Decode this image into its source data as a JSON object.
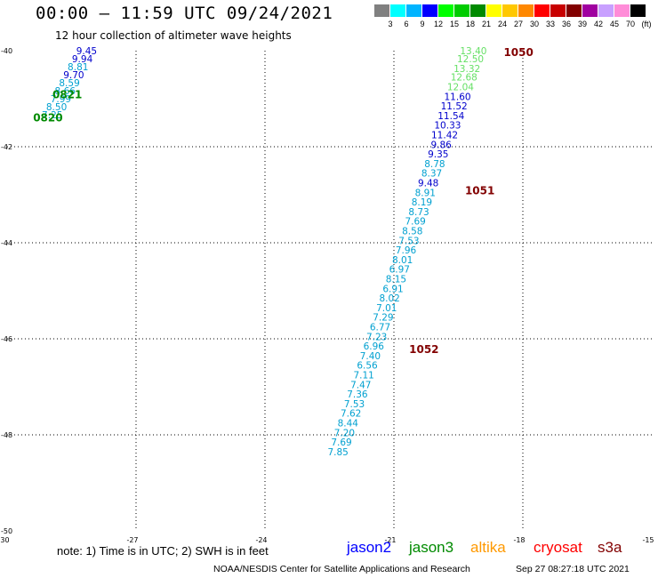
{
  "header": {
    "title": "00:00 – 11:59 UTC 09/24/2021",
    "subtitle": "12 hour collection of altimeter wave heights"
  },
  "colorbar": {
    "colors": [
      "#808080",
      "#00ffff",
      "#00b4ff",
      "#0000ff",
      "#00ff00",
      "#00cc00",
      "#008a00",
      "#ffff00",
      "#ffc800",
      "#ff8800",
      "#ff0000",
      "#c80000",
      "#820000",
      "#a000a0",
      "#c8a0ff",
      "#ff8cd8",
      "#000000"
    ],
    "labels": [
      "3",
      "6",
      "9",
      "12",
      "15",
      "18",
      "21",
      "24",
      "27",
      "30",
      "33",
      "36",
      "39",
      "42",
      "45",
      "70",
      "(ft)"
    ]
  },
  "map": {
    "x_ticks": [
      "-30",
      "-27",
      "-24",
      "-21",
      "-18",
      "-15"
    ],
    "y_ticks": [
      "-40",
      "-42",
      "-44",
      "-46",
      "-48",
      "-50"
    ],
    "xlim": [
      -30,
      -15
    ],
    "ylim": [
      -50,
      -40
    ]
  },
  "wave_labels": [
    {
      "v": "9.45",
      "lon": -28.15,
      "lat": -40.0,
      "color": "#0000cc"
    },
    {
      "v": "9.94",
      "lon": -28.25,
      "lat": -40.17,
      "color": "#0000cc"
    },
    {
      "v": "8.81",
      "lon": -28.35,
      "lat": -40.33,
      "color": "#00a0d0"
    },
    {
      "v": "9.70",
      "lon": -28.45,
      "lat": -40.5,
      "color": "#0000cc"
    },
    {
      "v": "8.59",
      "lon": -28.55,
      "lat": -40.67,
      "color": "#00a0d0"
    },
    {
      "v": "8.66",
      "lon": -28.65,
      "lat": -40.83,
      "color": "#00a0d0"
    },
    {
      "v": "7.99",
      "lon": -28.75,
      "lat": -41.0,
      "color": "#00a0d0"
    },
    {
      "v": "8.50",
      "lon": -28.85,
      "lat": -41.17,
      "color": "#00a0d0"
    },
    {
      "v": "7.25",
      "lon": -28.95,
      "lat": -41.33,
      "color": "#00a0d0"
    },
    {
      "v": "13.40",
      "lon": -19.15,
      "lat": -40.0,
      "color": "#66e066"
    },
    {
      "v": "12.50",
      "lon": -19.22,
      "lat": -40.17,
      "color": "#66e066"
    },
    {
      "v": "13.32",
      "lon": -19.3,
      "lat": -40.37,
      "color": "#66e066"
    },
    {
      "v": "12.68",
      "lon": -19.37,
      "lat": -40.55,
      "color": "#66e066"
    },
    {
      "v": "12.04",
      "lon": -19.45,
      "lat": -40.75,
      "color": "#66e066"
    },
    {
      "v": "11.60",
      "lon": -19.52,
      "lat": -40.95,
      "color": "#0000cc"
    },
    {
      "v": "11.52",
      "lon": -19.6,
      "lat": -41.15,
      "color": "#0000cc"
    },
    {
      "v": "11.54",
      "lon": -19.67,
      "lat": -41.35,
      "color": "#0000cc"
    },
    {
      "v": "10.33",
      "lon": -19.75,
      "lat": -41.55,
      "color": "#0000cc"
    },
    {
      "v": "11.42",
      "lon": -19.82,
      "lat": -41.75,
      "color": "#0000cc"
    },
    {
      "v": "9.86",
      "lon": -19.9,
      "lat": -41.95,
      "color": "#0000cc"
    },
    {
      "v": "9.35",
      "lon": -19.97,
      "lat": -42.15,
      "color": "#0000cc"
    },
    {
      "v": "8.78",
      "lon": -20.05,
      "lat": -42.35,
      "color": "#00a0d0"
    },
    {
      "v": "8.37",
      "lon": -20.12,
      "lat": -42.55,
      "color": "#00a0d0"
    },
    {
      "v": "9.48",
      "lon": -20.2,
      "lat": -42.75,
      "color": "#0000cc"
    },
    {
      "v": "8.91",
      "lon": -20.27,
      "lat": -42.95,
      "color": "#00a0d0"
    },
    {
      "v": "8.19",
      "lon": -20.35,
      "lat": -43.15,
      "color": "#00a0d0"
    },
    {
      "v": "8.73",
      "lon": -20.42,
      "lat": -43.35,
      "color": "#00a0d0"
    },
    {
      "v": "7.69",
      "lon": -20.5,
      "lat": -43.55,
      "color": "#00a0d0"
    },
    {
      "v": "8.58",
      "lon": -20.57,
      "lat": -43.75,
      "color": "#00a0d0"
    },
    {
      "v": "7.53",
      "lon": -20.65,
      "lat": -43.95,
      "color": "#00a0d0"
    },
    {
      "v": "7.96",
      "lon": -20.72,
      "lat": -44.15,
      "color": "#00a0d0"
    },
    {
      "v": "8.01",
      "lon": -20.8,
      "lat": -44.35,
      "color": "#00a0d0"
    },
    {
      "v": "6.97",
      "lon": -20.87,
      "lat": -44.55,
      "color": "#00a0d0"
    },
    {
      "v": "8.15",
      "lon": -20.95,
      "lat": -44.75,
      "color": "#00a0d0"
    },
    {
      "v": "6.91",
      "lon": -21.02,
      "lat": -44.95,
      "color": "#00a0d0"
    },
    {
      "v": "8.02",
      "lon": -21.1,
      "lat": -45.15,
      "color": "#00a0d0"
    },
    {
      "v": "7.01",
      "lon": -21.17,
      "lat": -45.35,
      "color": "#00a0d0"
    },
    {
      "v": "7.29",
      "lon": -21.25,
      "lat": -45.55,
      "color": "#00a0d0"
    },
    {
      "v": "6.77",
      "lon": -21.32,
      "lat": -45.75,
      "color": "#00a0d0"
    },
    {
      "v": "7.23",
      "lon": -21.4,
      "lat": -45.95,
      "color": "#00a0d0"
    },
    {
      "v": "6.96",
      "lon": -21.47,
      "lat": -46.15,
      "color": "#00a0d0"
    },
    {
      "v": "7.40",
      "lon": -21.55,
      "lat": -46.35,
      "color": "#00a0d0"
    },
    {
      "v": "6.56",
      "lon": -21.62,
      "lat": -46.55,
      "color": "#00a0d0"
    },
    {
      "v": "7.11",
      "lon": -21.7,
      "lat": -46.75,
      "color": "#00a0d0"
    },
    {
      "v": "7.47",
      "lon": -21.77,
      "lat": -46.95,
      "color": "#00a0d0"
    },
    {
      "v": "7.36",
      "lon": -21.85,
      "lat": -47.15,
      "color": "#00a0d0"
    },
    {
      "v": "7.53",
      "lon": -21.92,
      "lat": -47.35,
      "color": "#00a0d0"
    },
    {
      "v": "7.62",
      "lon": -22.0,
      "lat": -47.55,
      "color": "#00a0d0"
    },
    {
      "v": "8.44",
      "lon": -22.07,
      "lat": -47.75,
      "color": "#00a0d0"
    },
    {
      "v": "7.20",
      "lon": -22.15,
      "lat": -47.95,
      "color": "#00a0d0"
    },
    {
      "v": "7.69",
      "lon": -22.22,
      "lat": -48.15,
      "color": "#00a0d0"
    },
    {
      "v": "7.85",
      "lon": -22.3,
      "lat": -48.35,
      "color": "#00a0d0"
    }
  ],
  "time_labels": [
    {
      "t": "0821",
      "lon": -28.6,
      "lat": -40.9,
      "color": "#008a00"
    },
    {
      "t": "0820",
      "lon": -29.05,
      "lat": -41.38,
      "color": "#008a00"
    },
    {
      "t": "1050",
      "lon": -18.1,
      "lat": -40.02,
      "color": "#820000"
    },
    {
      "t": "1051",
      "lon": -19.0,
      "lat": -42.9,
      "color": "#820000"
    },
    {
      "t": "1052",
      "lon": -20.3,
      "lat": -46.2,
      "color": "#820000"
    }
  ],
  "footer": {
    "note": "note:  1) Time is in UTC;  2) SWH is in feet",
    "satellites": [
      {
        "name": "jason2",
        "color": "#0000ff"
      },
      {
        "name": "jason3",
        "color": "#008a00"
      },
      {
        "name": "altika",
        "color": "#ff9900"
      },
      {
        "name": "cryosat",
        "color": "#ff0000"
      },
      {
        "name": "s3a",
        "color": "#820000"
      }
    ],
    "credit": "NOAA/NESDIS Center for Satellite Applications and Research",
    "timestamp": "Sep 27 08:27:18 UTC 2021"
  }
}
